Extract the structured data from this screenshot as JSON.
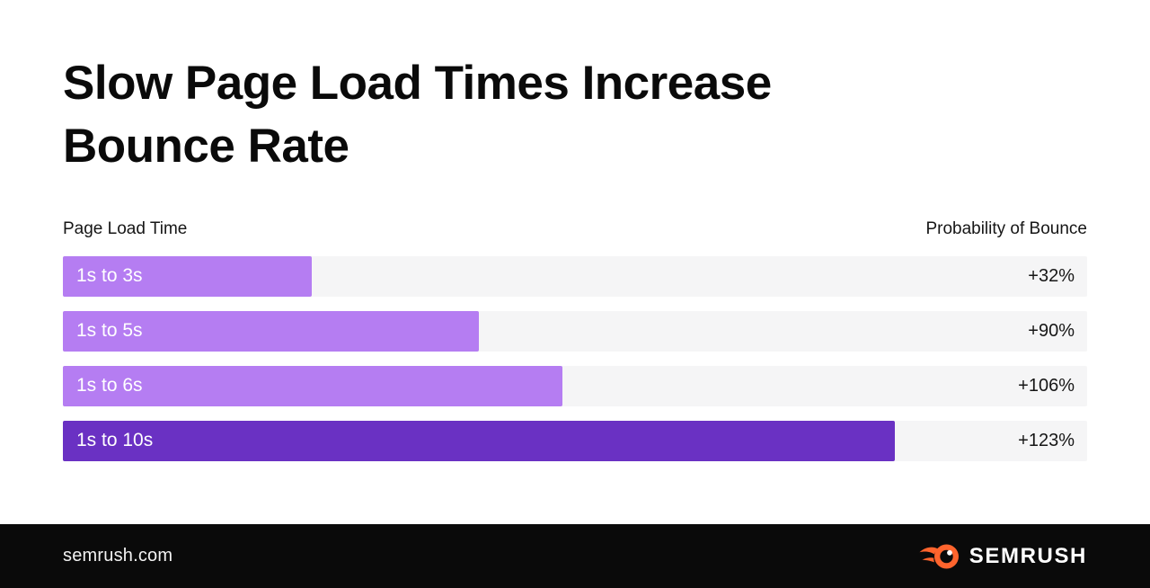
{
  "title": {
    "line1": "Slow Page Load Times Increase",
    "line2": "Bounce Rate",
    "full": "Slow Page Load Times Increase Bounce Rate"
  },
  "chart_data": {
    "type": "bar",
    "orientation": "horizontal",
    "title": "Slow Page Load Times Increase Bounce Rate",
    "xlabel": "Probability of Bounce",
    "ylabel": "Page Load Time",
    "col_left_header": "Page Load Time",
    "col_right_header": "Probability of Bounce",
    "categories": [
      "1s to 3s",
      "1s to 5s",
      "1s to 6s",
      "1s to 10s"
    ],
    "values_percent": [
      32,
      90,
      106,
      123
    ],
    "value_labels": [
      "+32%",
      "+90%",
      "+106%",
      "+123%"
    ],
    "legend": "none",
    "grid": false,
    "track_color": "#f5f5f6",
    "rows": [
      {
        "label": "1s to 3s",
        "value": "+32%",
        "bar_fraction": 0.243,
        "color": "#b57df2"
      },
      {
        "label": "1s to 5s",
        "value": "+90%",
        "bar_fraction": 0.406,
        "color": "#b57df2"
      },
      {
        "label": "1s to 6s",
        "value": "+106%",
        "bar_fraction": 0.488,
        "color": "#b57df2"
      },
      {
        "label": "1s to 10s",
        "value": "+123%",
        "bar_fraction": 0.812,
        "color": "#6a31c3"
      }
    ]
  },
  "footer": {
    "site": "semrush.com",
    "brand": "SEMRUSH",
    "logo_icon": "semrush-flame-icon",
    "accent": "#ff642d",
    "bg": "#0a0a0a"
  }
}
